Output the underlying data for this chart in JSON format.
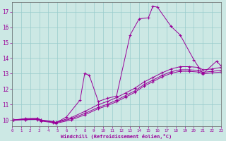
{
  "background_color": "#cce8e4",
  "grid_color": "#99cccc",
  "line_color": "#990099",
  "xlim": [
    0,
    23
  ],
  "ylim": [
    9.6,
    17.6
  ],
  "yticks": [
    10,
    11,
    12,
    13,
    14,
    15,
    16,
    17
  ],
  "xticks": [
    0,
    1,
    2,
    3,
    4,
    5,
    6,
    7,
    8,
    9,
    10,
    11,
    12,
    13,
    14,
    15,
    16,
    17,
    18,
    19,
    20,
    21,
    22,
    23
  ],
  "xlabel": "Windchill (Refroidissement éolien,°C)",
  "lines": [
    {
      "x": [
        0.2,
        1.5,
        2.8,
        3.2,
        4.5,
        4.8,
        6.0,
        7.5,
        8.0,
        8.5,
        9.5,
        10.5,
        11.5,
        13.0,
        14.0,
        15.0,
        15.5,
        16.0,
        17.5,
        18.5,
        20.0,
        21.0,
        22.5,
        23.0
      ],
      "y": [
        10.0,
        10.1,
        10.1,
        10.0,
        9.85,
        9.8,
        10.2,
        11.3,
        13.0,
        12.9,
        11.2,
        11.4,
        11.55,
        15.5,
        16.55,
        16.6,
        17.35,
        17.3,
        16.05,
        15.5,
        13.9,
        13.0,
        13.8,
        13.5
      ]
    },
    {
      "x": [
        0.2,
        1.5,
        2.8,
        3.2,
        4.5,
        4.8,
        6.5,
        8.0,
        9.5,
        10.5,
        11.5,
        12.5,
        13.5,
        14.5,
        15.5,
        16.5,
        17.5,
        18.5,
        19.5,
        20.5,
        21.0,
        22.0,
        23.0
      ],
      "y": [
        10.0,
        10.05,
        10.1,
        10.0,
        9.9,
        9.85,
        10.15,
        10.55,
        11.0,
        11.2,
        11.45,
        11.75,
        12.05,
        12.45,
        12.75,
        13.05,
        13.3,
        13.45,
        13.45,
        13.4,
        13.25,
        13.3,
        13.4
      ]
    },
    {
      "x": [
        0.2,
        1.5,
        2.8,
        3.2,
        4.5,
        4.8,
        6.5,
        8.0,
        9.5,
        10.5,
        11.5,
        12.5,
        13.5,
        14.5,
        15.5,
        16.5,
        17.5,
        18.5,
        19.5,
        20.5,
        21.0,
        22.0,
        23.0
      ],
      "y": [
        10.0,
        10.03,
        10.05,
        9.97,
        9.87,
        9.82,
        10.08,
        10.42,
        10.82,
        11.02,
        11.28,
        11.58,
        11.88,
        12.28,
        12.58,
        12.88,
        13.12,
        13.25,
        13.25,
        13.2,
        13.08,
        13.15,
        13.2
      ]
    },
    {
      "x": [
        0.2,
        1.5,
        2.8,
        3.2,
        4.5,
        4.8,
        6.5,
        8.0,
        9.5,
        10.5,
        11.5,
        12.5,
        13.5,
        14.5,
        15.5,
        16.5,
        17.5,
        18.5,
        19.5,
        20.5,
        21.0,
        22.0,
        23.0
      ],
      "y": [
        10.0,
        10.02,
        10.03,
        9.93,
        9.83,
        9.78,
        10.0,
        10.33,
        10.73,
        10.93,
        11.18,
        11.48,
        11.78,
        12.18,
        12.48,
        12.78,
        13.02,
        13.15,
        13.15,
        13.1,
        12.98,
        13.05,
        13.1
      ]
    }
  ]
}
